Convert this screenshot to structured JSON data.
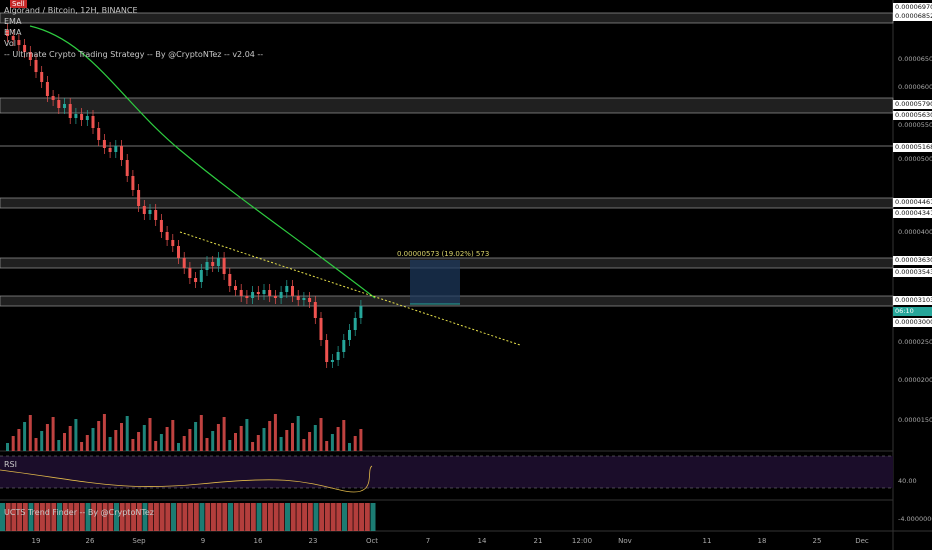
{
  "header": {
    "sell_badge": "Sell",
    "symbol_line": "Algorand / Bitcoin, 12H, BINANCE",
    "indicator_ema1": "EMA",
    "indicator_ema2": "EMA",
    "indicator_vol": "Vol",
    "strategy_line": "-- Ultimate Crypto Trading Strategy -- By @CryptoNTez -- v2.04 --"
  },
  "price_tags": [
    "0.00006970",
    "0.00006852",
    "0.00005790",
    "0.00005630",
    "0.00005168",
    "0.00004461",
    "0.00004341",
    "0.00003630",
    "0.00003543",
    "0.00003103",
    "06:10",
    "0.00003000"
  ],
  "price_ticks": [
    "0.00006500",
    "0.00006000",
    "0.00005500",
    "0.00005000",
    "0.00004000",
    "0.00002500",
    "0.00002000",
    "0.00001500"
  ],
  "measure_label": "0.00000573 (19.02%) 573",
  "rsi": {
    "label": "RSI",
    "tick": "40.00"
  },
  "trend_finder": {
    "label": "UCTS Trend Finder -- By @CryptoNTez",
    "tick": "-4.00000000"
  },
  "date_ticks": [
    "19",
    "26",
    "Sep",
    "9",
    "16",
    "23",
    "Oct",
    "7",
    "14",
    "21",
    "12:00",
    "Nov",
    "11",
    "18",
    "25",
    "Dec"
  ],
  "colors": {
    "up": "#26a69a",
    "down": "#ef5350",
    "ema": "#2ecc40",
    "band": "#555555",
    "trend": "#e6e04a",
    "rsi_bg": "#1b0d2a"
  }
}
